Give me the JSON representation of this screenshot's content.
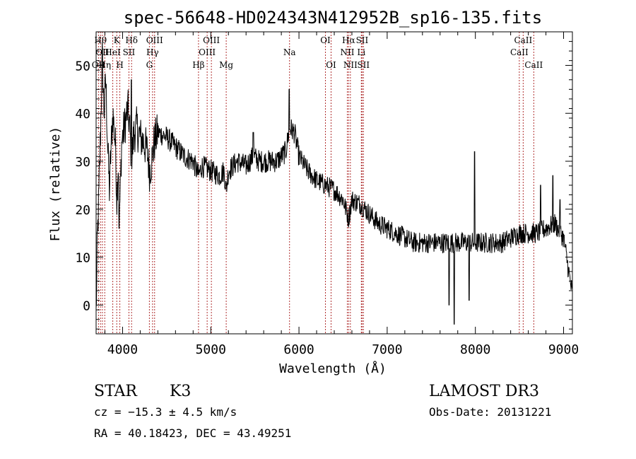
{
  "chart_data": {
    "type": "line",
    "title": "spec-56648-HD024343N412952B_sp16-135.fits",
    "xlabel": "Wavelength (Å)",
    "ylabel": "Flux (relative)",
    "xlim": [
      3700,
      9100
    ],
    "ylim": [
      -6,
      57
    ],
    "xticks": [
      "4000",
      "5000",
      "6000",
      "7000",
      "8000",
      "9000"
    ],
    "yticks": [
      "0",
      "10",
      "20",
      "30",
      "40",
      "50"
    ],
    "anchors": [
      [
        3700,
        -2
      ],
      [
        3715,
        14
      ],
      [
        3730,
        22
      ],
      [
        3750,
        36
      ],
      [
        3770,
        52
      ],
      [
        3790,
        40
      ],
      [
        3810,
        47
      ],
      [
        3830,
        34
      ],
      [
        3850,
        24
      ],
      [
        3870,
        33
      ],
      [
        3890,
        40
      ],
      [
        3920,
        33
      ],
      [
        3935,
        22
      ],
      [
        3950,
        30
      ],
      [
        3968,
        20
      ],
      [
        3990,
        34
      ],
      [
        4020,
        37
      ],
      [
        4060,
        41
      ],
      [
        4080,
        37
      ],
      [
        4102,
        30
      ],
      [
        4130,
        36
      ],
      [
        4160,
        37
      ],
      [
        4200,
        35
      ],
      [
        4240,
        34
      ],
      [
        4280,
        32
      ],
      [
        4305,
        28
      ],
      [
        4330,
        30
      ],
      [
        4360,
        34
      ],
      [
        4400,
        36
      ],
      [
        4500,
        35
      ],
      [
        4600,
        33
      ],
      [
        4700,
        31
      ],
      [
        4800,
        30
      ],
      [
        4861,
        27
      ],
      [
        4900,
        29
      ],
      [
        5000,
        28
      ],
      [
        5100,
        27
      ],
      [
        5150,
        28
      ],
      [
        5175,
        24
      ],
      [
        5200,
        28
      ],
      [
        5300,
        30
      ],
      [
        5400,
        29
      ],
      [
        5480,
        31
      ],
      [
        5550,
        30
      ],
      [
        5650,
        30
      ],
      [
        5750,
        30
      ],
      [
        5850,
        32
      ],
      [
        5893,
        37
      ],
      [
        5950,
        36
      ],
      [
        6000,
        31
      ],
      [
        6100,
        28
      ],
      [
        6200,
        26
      ],
      [
        6300,
        25
      ],
      [
        6400,
        24
      ],
      [
        6500,
        22
      ],
      [
        6563,
        18
      ],
      [
        6600,
        22
      ],
      [
        6700,
        21
      ],
      [
        6800,
        19
      ],
      [
        6900,
        17
      ],
      [
        7000,
        16
      ],
      [
        7100,
        15
      ],
      [
        7200,
        14
      ],
      [
        7300,
        13
      ],
      [
        7400,
        13
      ],
      [
        7500,
        13
      ],
      [
        7600,
        13
      ],
      [
        7700,
        13
      ],
      [
        7800,
        13
      ],
      [
        7900,
        13
      ],
      [
        8000,
        13
      ],
      [
        8100,
        13
      ],
      [
        8200,
        13
      ],
      [
        8300,
        13
      ],
      [
        8400,
        14
      ],
      [
        8500,
        15
      ],
      [
        8600,
        15
      ],
      [
        8700,
        15
      ],
      [
        8800,
        16
      ],
      [
        8900,
        17
      ],
      [
        9000,
        14
      ],
      [
        9100,
        2
      ]
    ],
    "features": [
      {
        "x": 5482,
        "y": 36
      },
      {
        "x": 5888,
        "y": 45
      },
      {
        "x": 7760,
        "y": -4
      },
      {
        "x": 7700,
        "y": 0
      },
      {
        "x": 7930,
        "y": 1
      },
      {
        "x": 7990,
        "y": 32
      },
      {
        "x": 8740,
        "y": 25
      },
      {
        "x": 8880,
        "y": 27
      },
      {
        "x": 8960,
        "y": 22
      },
      {
        "x": 4100,
        "y": 47
      },
      {
        "x": 3960,
        "y": 16
      }
    ],
    "lines": [
      {
        "x": 3727,
        "label": "OII",
        "row": 2
      },
      {
        "x": 3750,
        "label": "Hθ",
        "row": 0
      },
      {
        "x": 3771,
        "label": "OII",
        "row": 1
      },
      {
        "x": 3798,
        "label": "Hη",
        "row": 2
      },
      {
        "x": 3889,
        "label": "HeI",
        "row": 1
      },
      {
        "x": 3934,
        "label": "K",
        "row": 0
      },
      {
        "x": 3969,
        "label": "H",
        "row": 2
      },
      {
        "x": 4072,
        "label": "SII",
        "row": 1
      },
      {
        "x": 4102,
        "label": "Hδ",
        "row": 0
      },
      {
        "x": 4304,
        "label": "G",
        "row": 2
      },
      {
        "x": 4340,
        "label": "Hγ",
        "row": 1
      },
      {
        "x": 4363,
        "label": "OIII",
        "row": 0
      },
      {
        "x": 4861,
        "label": "Hβ",
        "row": 2
      },
      {
        "x": 4959,
        "label": "OIII",
        "row": 1
      },
      {
        "x": 5007,
        "label": "OIII",
        "row": 0
      },
      {
        "x": 5175,
        "label": "Mg",
        "row": 2
      },
      {
        "x": 5893,
        "label": "Na",
        "row": 1
      },
      {
        "x": 6300,
        "label": "OI",
        "row": 0
      },
      {
        "x": 6364,
        "label": "OI",
        "row": 2
      },
      {
        "x": 6548,
        "label": "NII",
        "row": 1
      },
      {
        "x": 6563,
        "label": "Hα",
        "row": 0
      },
      {
        "x": 6583,
        "label": "NII",
        "row": 2
      },
      {
        "x": 6707,
        "label": "Li",
        "row": 1
      },
      {
        "x": 6716,
        "label": "SII",
        "row": 0
      },
      {
        "x": 6731,
        "label": "SII",
        "row": 2
      },
      {
        "x": 8498,
        "label": "CaII",
        "row": 1
      },
      {
        "x": 8542,
        "label": "CaII",
        "row": 0
      },
      {
        "x": 8662,
        "label": "CaII",
        "row": 2
      }
    ],
    "colors": {
      "spectrum": "#000000",
      "marker": "#b03030"
    }
  },
  "info": {
    "object_class": "STAR",
    "subclass": "K3",
    "redshift": "cz = −15.3 ± 4.5 km/s",
    "coords": "RA =  40.18423, DEC =  43.49251",
    "survey": "LAMOST DR3",
    "obs_date": "Obs-Date: 20131221"
  }
}
